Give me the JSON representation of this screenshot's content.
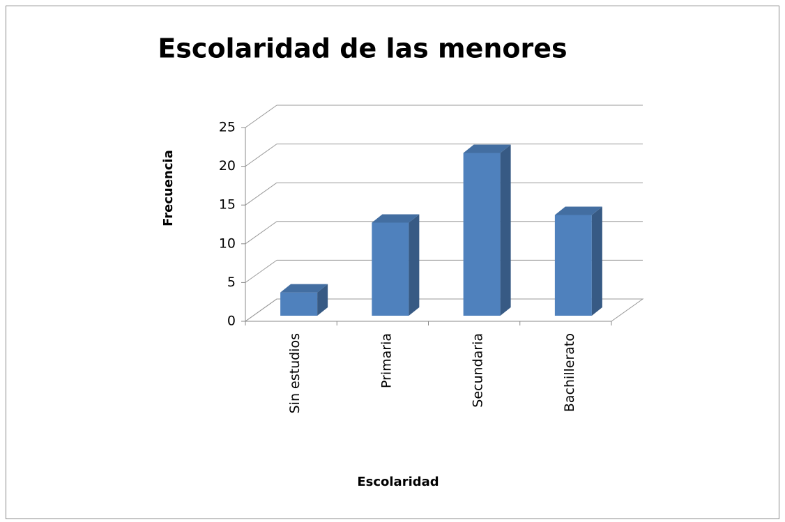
{
  "chart_data": {
    "type": "bar3d",
    "title": "Escolaridad de las menores",
    "x_label": "Escolaridad",
    "y_label": "Frecuencia",
    "categories": [
      "Sin estudios",
      "Primaria",
      "Secundaria",
      "Bachillerato"
    ],
    "values": [
      3,
      12,
      21,
      13
    ],
    "color": "#4f81bd",
    "ylim": [
      0,
      25
    ],
    "yticks": [
      0,
      5,
      10,
      15,
      20,
      25
    ],
    "grid": true
  }
}
